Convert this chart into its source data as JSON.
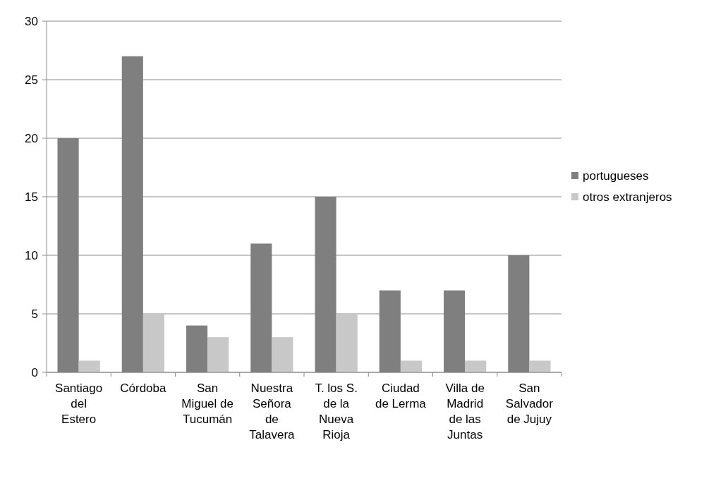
{
  "chart_data": {
    "type": "bar",
    "categories": [
      "Santiago del Estero",
      "Córdoba",
      "San Miguel de Tucumán",
      "Nuestra Señora de Talavera",
      "T. los S. de la Nueva Rioja",
      "Ciudad de Lerma",
      "Villa de Madrid de las Juntas",
      "San Salvador de Jujuy"
    ],
    "series": [
      {
        "name": "portugueses",
        "color": "#7f7f7f",
        "values": [
          20,
          27,
          4,
          11,
          15,
          7,
          7,
          10
        ]
      },
      {
        "name": "otros extranjeros",
        "color": "#c8c8c8",
        "values": [
          1,
          5,
          3,
          3,
          5,
          1,
          1,
          1
        ]
      }
    ],
    "ylim": [
      0,
      30
    ],
    "yticks": [
      0,
      5,
      10,
      15,
      20,
      25,
      30
    ],
    "grid": "y",
    "legend": "right"
  }
}
